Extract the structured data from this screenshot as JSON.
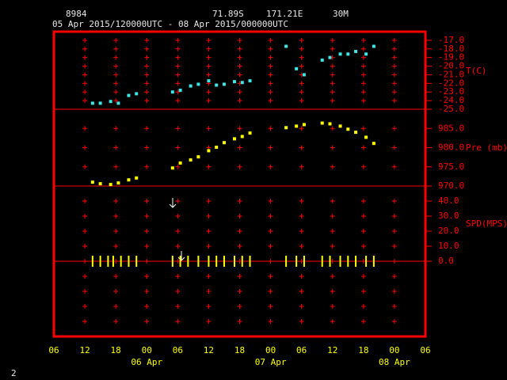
{
  "header": {
    "station": "8984",
    "latitude": "71.89S",
    "longitude": "171.21E",
    "elevation": "30M",
    "period": "05 Apr 2015/120000UTC - 08 Apr 2015/000000UTC",
    "page": "2"
  },
  "x_axis": {
    "xlim": [
      6,
      78
    ],
    "xticks": [
      {
        "value": 6,
        "label": "06"
      },
      {
        "value": 12,
        "label": "12"
      },
      {
        "value": 18,
        "label": "18"
      },
      {
        "value": 24,
        "label": "00"
      },
      {
        "value": 30,
        "label": "06"
      },
      {
        "value": 36,
        "label": "12"
      },
      {
        "value": 42,
        "label": "18"
      },
      {
        "value": 48,
        "label": "00"
      },
      {
        "value": 54,
        "label": "06"
      },
      {
        "value": 60,
        "label": "12"
      },
      {
        "value": 66,
        "label": "18"
      },
      {
        "value": 72,
        "label": "00"
      },
      {
        "value": 78,
        "label": "06"
      }
    ],
    "date_labels": [
      {
        "value": 24,
        "label": "06 Apr"
      },
      {
        "value": 48,
        "label": "07 Apr"
      },
      {
        "value": 72,
        "label": "08 Apr"
      }
    ]
  },
  "chart_data": [
    {
      "type": "scatter",
      "ylabel": "T(C)",
      "color": "#3fe6e6",
      "marker": "square",
      "x": [
        13.5,
        15,
        17,
        18.5,
        20.5,
        22,
        29,
        30.5,
        32.5,
        34,
        36,
        37.5,
        39,
        41,
        42.5,
        44,
        51,
        53,
        54.5,
        58,
        59.5,
        61.5,
        63,
        64.5,
        66.5,
        68
      ],
      "values": [
        -24.3,
        -24.3,
        -24.1,
        -24.3,
        -23.4,
        -23.2,
        -23.0,
        -22.8,
        -22.3,
        -22.1,
        -21.7,
        -22.2,
        -22.1,
        -21.8,
        -21.9,
        -21.7,
        -17.7,
        -20.3,
        -21.0,
        -19.3,
        -19.0,
        -18.6,
        -18.6,
        -18.3,
        -18.6,
        -17.7
      ],
      "ylim": [
        -25,
        -16
      ],
      "yticks": [
        {
          "value": -17,
          "label": "-17.0"
        },
        {
          "value": -18,
          "label": "-18.0"
        },
        {
          "value": -19,
          "label": "-19.0"
        },
        {
          "value": -20,
          "label": "-20.0"
        },
        {
          "value": -21,
          "label": "-21.0"
        },
        {
          "value": -22,
          "label": "-22.0"
        },
        {
          "value": -23,
          "label": "-23.0"
        },
        {
          "value": -24,
          "label": "-24.0"
        },
        {
          "value": -25,
          "label": "-25.0"
        }
      ]
    },
    {
      "type": "scatter",
      "ylabel": "Pre (mb)",
      "color": "#ffff00",
      "marker": "square",
      "x": [
        13.5,
        15,
        17,
        18.5,
        20.5,
        22,
        29,
        30.5,
        32.5,
        34,
        36,
        37.5,
        39,
        41,
        42.5,
        44,
        51,
        53,
        54.5,
        58,
        59.5,
        61.5,
        63,
        64.5,
        66.5,
        68
      ],
      "values": [
        971.0,
        970.6,
        970.4,
        970.8,
        971.6,
        972.1,
        974.7,
        976.0,
        976.8,
        977.6,
        979.2,
        980.1,
        981.3,
        982.3,
        982.9,
        983.8,
        985.2,
        985.6,
        986.0,
        986.4,
        986.2,
        985.6,
        984.8,
        984.0,
        982.7,
        981.1
      ],
      "ylim": [
        970,
        990
      ],
      "yticks": [
        {
          "value": 985,
          "label": "985.0"
        },
        {
          "value": 980,
          "label": "980.0"
        },
        {
          "value": 975,
          "label": "975.0"
        },
        {
          "value": 970,
          "label": "970.0"
        }
      ]
    },
    {
      "type": "scatter",
      "ylabel": "SPD(MPS)",
      "color": "#ffff00",
      "marker": "tick",
      "x": [
        13.5,
        15,
        16.5,
        17.5,
        19,
        20.5,
        22,
        29,
        30.5,
        32,
        34,
        36,
        37.5,
        39,
        41,
        42.5,
        44,
        51,
        53,
        54.5,
        58,
        59.5,
        61.5,
        63,
        64.5,
        66.5,
        68
      ],
      "values": [
        0,
        0,
        0,
        0,
        0,
        0,
        0,
        0,
        0,
        0,
        0,
        0,
        0,
        0,
        0,
        0,
        0,
        0,
        0,
        0,
        0,
        0,
        0,
        0,
        0,
        0,
        0
      ],
      "ylim": [
        -50,
        50
      ],
      "yticks": [
        {
          "value": 40,
          "label": "40.0"
        },
        {
          "value": 30,
          "label": "30.0"
        },
        {
          "value": 20,
          "label": "20.0"
        },
        {
          "value": 10,
          "label": "10.0"
        },
        {
          "value": 0,
          "label": "0.0"
        }
      ]
    }
  ]
}
